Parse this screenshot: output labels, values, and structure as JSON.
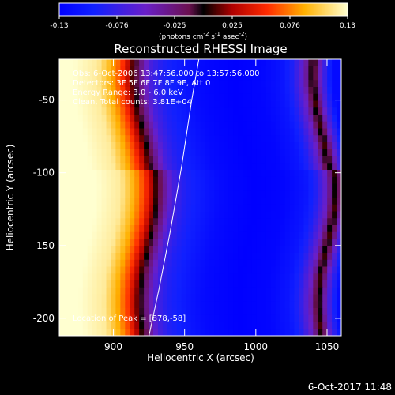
{
  "chart_data": {
    "type": "heatmap",
    "title": "Reconstructed RHESSI Image",
    "xlabel": "Heliocentric X (arcsec)",
    "ylabel": "Heliocentric Y (arcsec)",
    "xlim": [
      862,
      1060
    ],
    "ylim": [
      -212,
      -22
    ],
    "x_ticks": [
      900,
      950,
      1000,
      1050
    ],
    "y_ticks": [
      -50,
      -100,
      -150,
      -200
    ],
    "colorbar": {
      "min": -0.13,
      "max": 0.13,
      "ticks": [
        "-0.13",
        "-0.076",
        "-0.025",
        "0.025",
        "0.076",
        "0.13"
      ],
      "unit_label": "(photons cm",
      "unit_exp1": "-2",
      "unit_mid": " s",
      "unit_exp2": "-1",
      "unit_mid2": " asec",
      "unit_exp3": "-2",
      "unit_end": ")"
    },
    "annotations": [
      "Obs: 6-Oct-2006 13:47:56.000 to 13:57:56.000",
      "Detectors: 3F 5F 6F 7F 8F 9F, Att 0",
      "Energy Range: 3.0 - 6.0 keV",
      "Clean, Total counts: 3.81E+04"
    ],
    "peak_label": "Location of Peak = [878,-58]",
    "limb_curve": [
      [
        925,
        -212
      ],
      [
        932,
        -180
      ],
      [
        940,
        -140
      ],
      [
        948,
        -95
      ],
      [
        955,
        -50
      ],
      [
        960,
        -22
      ]
    ],
    "profile_x": [
      862,
      878,
      895,
      905,
      912,
      918,
      925,
      932,
      940,
      948,
      956,
      965,
      975,
      990,
      1010,
      1025,
      1032,
      1040,
      1046,
      1052,
      1060
    ],
    "profile_value": [
      0.13,
      0.13,
      0.12,
      0.09,
      0.06,
      0.02,
      -0.03,
      -0.07,
      -0.09,
      -0.1,
      -0.11,
      -0.12,
      -0.125,
      -0.13,
      -0.125,
      -0.11,
      -0.09,
      -0.05,
      0.01,
      -0.06,
      -0.12
    ]
  },
  "footer": {
    "timestamp": "6-Oct-2017 11:48"
  }
}
